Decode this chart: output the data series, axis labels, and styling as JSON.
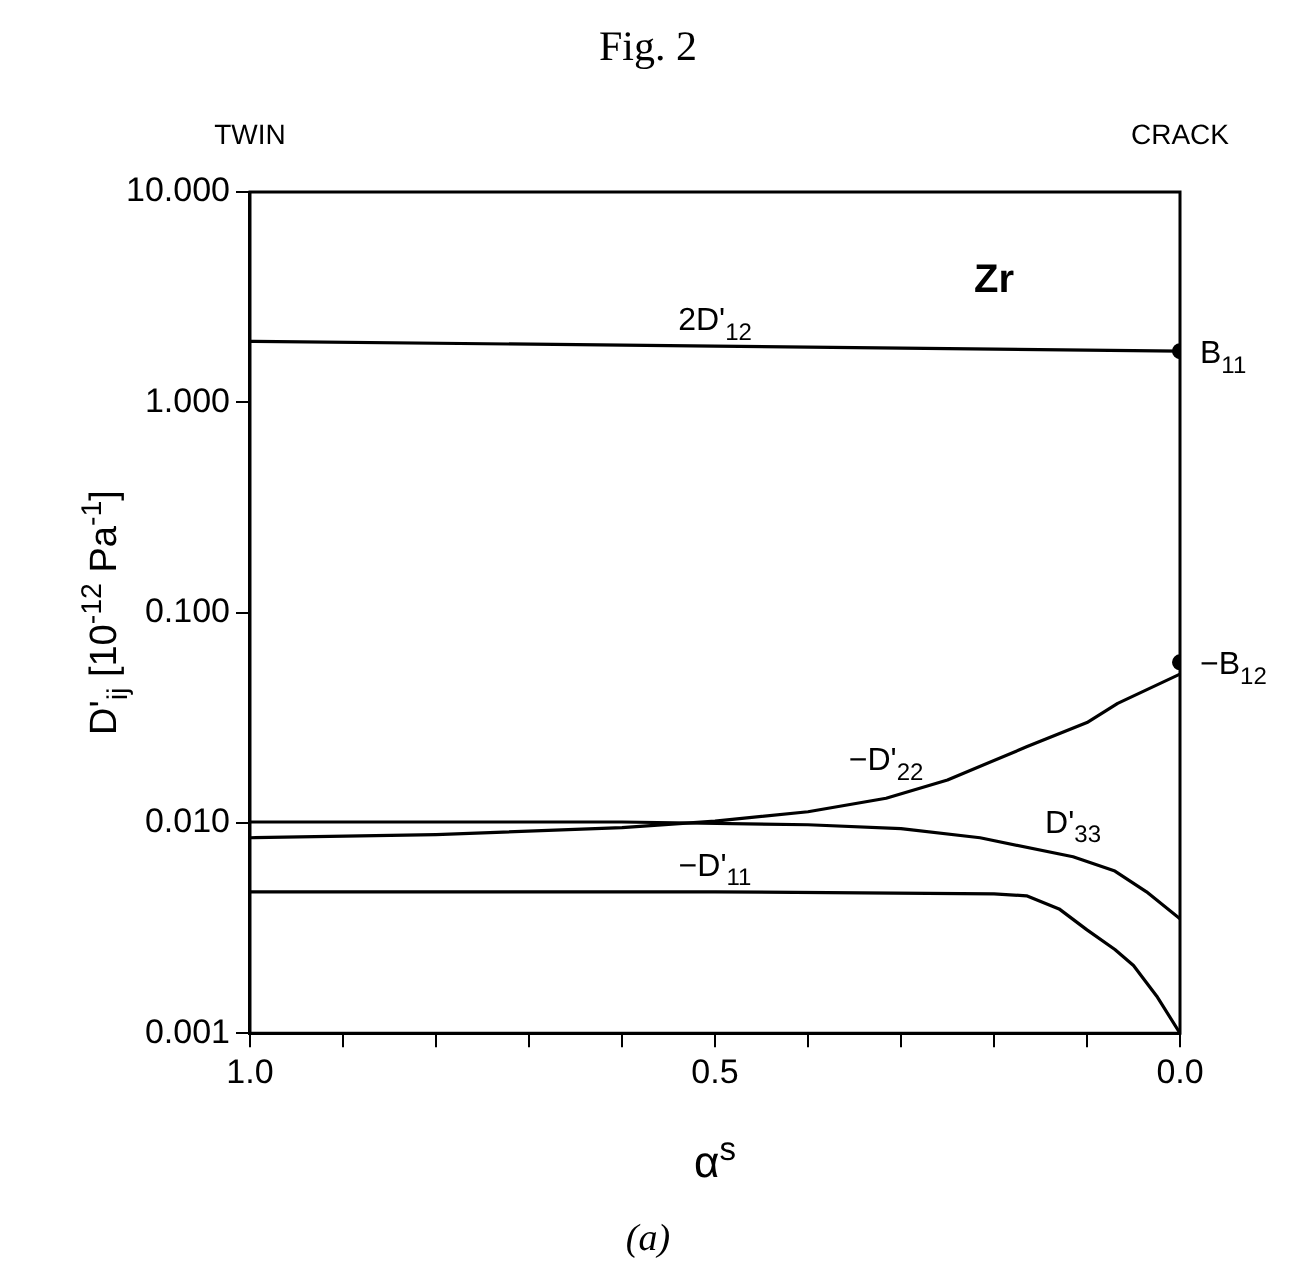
{
  "chart_data": {
    "type": "line",
    "title": "Fig. 2",
    "xlabel": "α$^{s}$",
    "ylabel": "D'$_{ij}$ [10$^{-12}$ Pa$^{-1}$]",
    "log": "y",
    "grid": false,
    "legend": false,
    "line_style": "solid",
    "marker": "none",
    "xlim": [
      1.0,
      0.0
    ],
    "xticks": [
      {
        "value": 1.0,
        "label": "1.0"
      },
      {
        "value": 0.9,
        "label": null
      },
      {
        "value": 0.8,
        "label": null
      },
      {
        "value": 0.7,
        "label": null
      },
      {
        "value": 0.6,
        "label": null
      },
      {
        "value": 0.5,
        "label": "0.5"
      },
      {
        "value": 0.4,
        "label": null
      },
      {
        "value": 0.3,
        "label": null
      },
      {
        "value": 0.2,
        "label": null
      },
      {
        "value": 0.1,
        "label": null
      },
      {
        "value": 0.0,
        "label": "0.0"
      }
    ],
    "ylim": [
      0.001,
      10
    ],
    "yticks": [
      {
        "value": 0.001,
        "label": "0.001"
      },
      {
        "value": 0.01,
        "label": "0.010"
      },
      {
        "value": 0.1,
        "label": "0.100"
      },
      {
        "value": 1,
        "label": "1.000"
      },
      {
        "value": 10,
        "label": "10.000"
      }
    ],
    "series": [
      {
        "name": "2D'$_{12}$",
        "color": "#000000",
        "x": [
          1.0,
          0.5,
          0.0
        ],
        "values": [
          1.95,
          1.85,
          1.75
        ]
      },
      {
        "name": "−D'$_{22}$",
        "color": "#000000",
        "x": [
          1.0,
          0.8,
          0.6,
          0.5,
          0.4,
          0.316,
          0.25,
          0.165,
          0.1,
          0.067,
          0.0
        ],
        "values": [
          0.0085,
          0.0088,
          0.0095,
          0.0102,
          0.0113,
          0.0131,
          0.016,
          0.023,
          0.03,
          0.037,
          0.051
        ]
      },
      {
        "name": "D'$_{33}$",
        "color": "#000000",
        "x": [
          1.0,
          0.6,
          0.4,
          0.3,
          0.215,
          0.115,
          0.07,
          0.036,
          0.0
        ],
        "values": [
          0.0101,
          0.0101,
          0.0098,
          0.0094,
          0.0085,
          0.0069,
          0.0059,
          0.0047,
          0.0035
        ]
      },
      {
        "name": "−D'$_{11}$",
        "color": "#000000",
        "x": [
          1.0,
          0.5,
          0.2,
          0.165,
          0.13,
          0.1,
          0.07,
          0.05,
          0.025,
          0.0
        ],
        "values": [
          0.0047,
          0.0047,
          0.0046,
          0.0045,
          0.0039,
          0.0031,
          0.0025,
          0.0021,
          0.0015,
          0.001
        ]
      },
      {
        "type": "scatter",
        "marker": "circle",
        "color": "#000000",
        "x": [
          0.0,
          0.0
        ],
        "values": [
          1.75,
          0.058
        ]
      }
    ],
    "annotations": [
      "TWIN",
      "CRACK",
      "Zr",
      {
        "text": "B$_{11}$",
        "x": 0.0,
        "y": 1.75
      },
      {
        "text": "−B$_{12}$",
        "x": 0.0,
        "y": 0.058
      },
      "(a)"
    ]
  }
}
